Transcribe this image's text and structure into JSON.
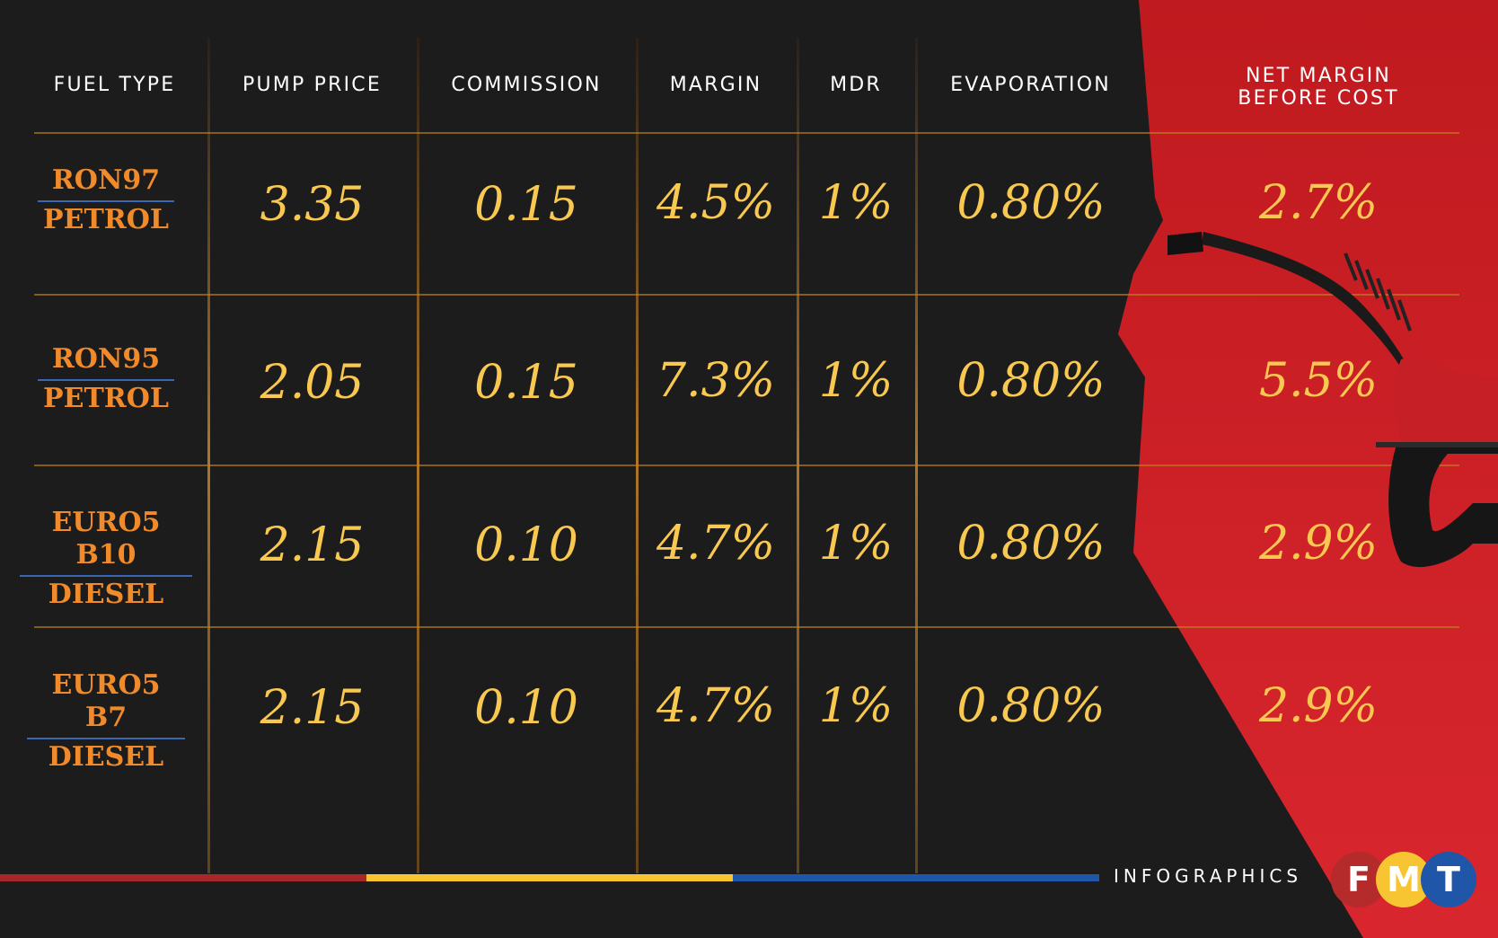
{
  "chart_data": {
    "type": "table",
    "columns": [
      "FUEL TYPE",
      "PUMP PRICE",
      "COMMISSION",
      "MARGIN",
      "MDR",
      "EVAPORATION",
      "NET MARGIN BEFORE COST"
    ],
    "net_margin_header": [
      "NET MARGIN",
      "BEFORE COST"
    ],
    "rows": [
      {
        "fuel_line1": "RON97",
        "fuel_line2": "PETROL",
        "pump_price": "3.35",
        "commission": "0.15",
        "margin": "4.5%",
        "mdr": "1%",
        "evaporation": "0.80%",
        "net_margin": "2.7%"
      },
      {
        "fuel_line1": "RON95",
        "fuel_line2": "PETROL",
        "pump_price": "2.05",
        "commission": "0.15",
        "margin": "7.3%",
        "mdr": "1%",
        "evaporation": "0.80%",
        "net_margin": "5.5%"
      },
      {
        "fuel_line1": "EURO5 B10",
        "fuel_line2": "DIESEL",
        "pump_price": "2.15",
        "commission": "0.10",
        "margin": "4.7%",
        "mdr": "1%",
        "evaporation": "0.80%",
        "net_margin": "2.9%"
      },
      {
        "fuel_line1": "EURO5 B7",
        "fuel_line2": "DIESEL",
        "pump_price": "2.15",
        "commission": "0.10",
        "margin": "4.7%",
        "mdr": "1%",
        "evaporation": "0.80%",
        "net_margin": "2.9%"
      }
    ]
  },
  "footer": {
    "label": "INFOGRAPHICS",
    "logo_letters": [
      "F",
      "M",
      "T"
    ],
    "stripe_colors": [
      "#a8282a",
      "#f7c531",
      "#1f56a8"
    ]
  },
  "colors": {
    "background": "#1c1c1c",
    "accent_red": "#d3242b",
    "value_yellow": "#f9c850",
    "fuel_orange": "#f08a2a",
    "rule_orange": "#c2801f",
    "logo_red": "#b52a2a",
    "logo_yellow": "#f7c531",
    "logo_blue": "#1f56a8"
  },
  "decorations": [
    "fuel-nozzle-icon"
  ]
}
